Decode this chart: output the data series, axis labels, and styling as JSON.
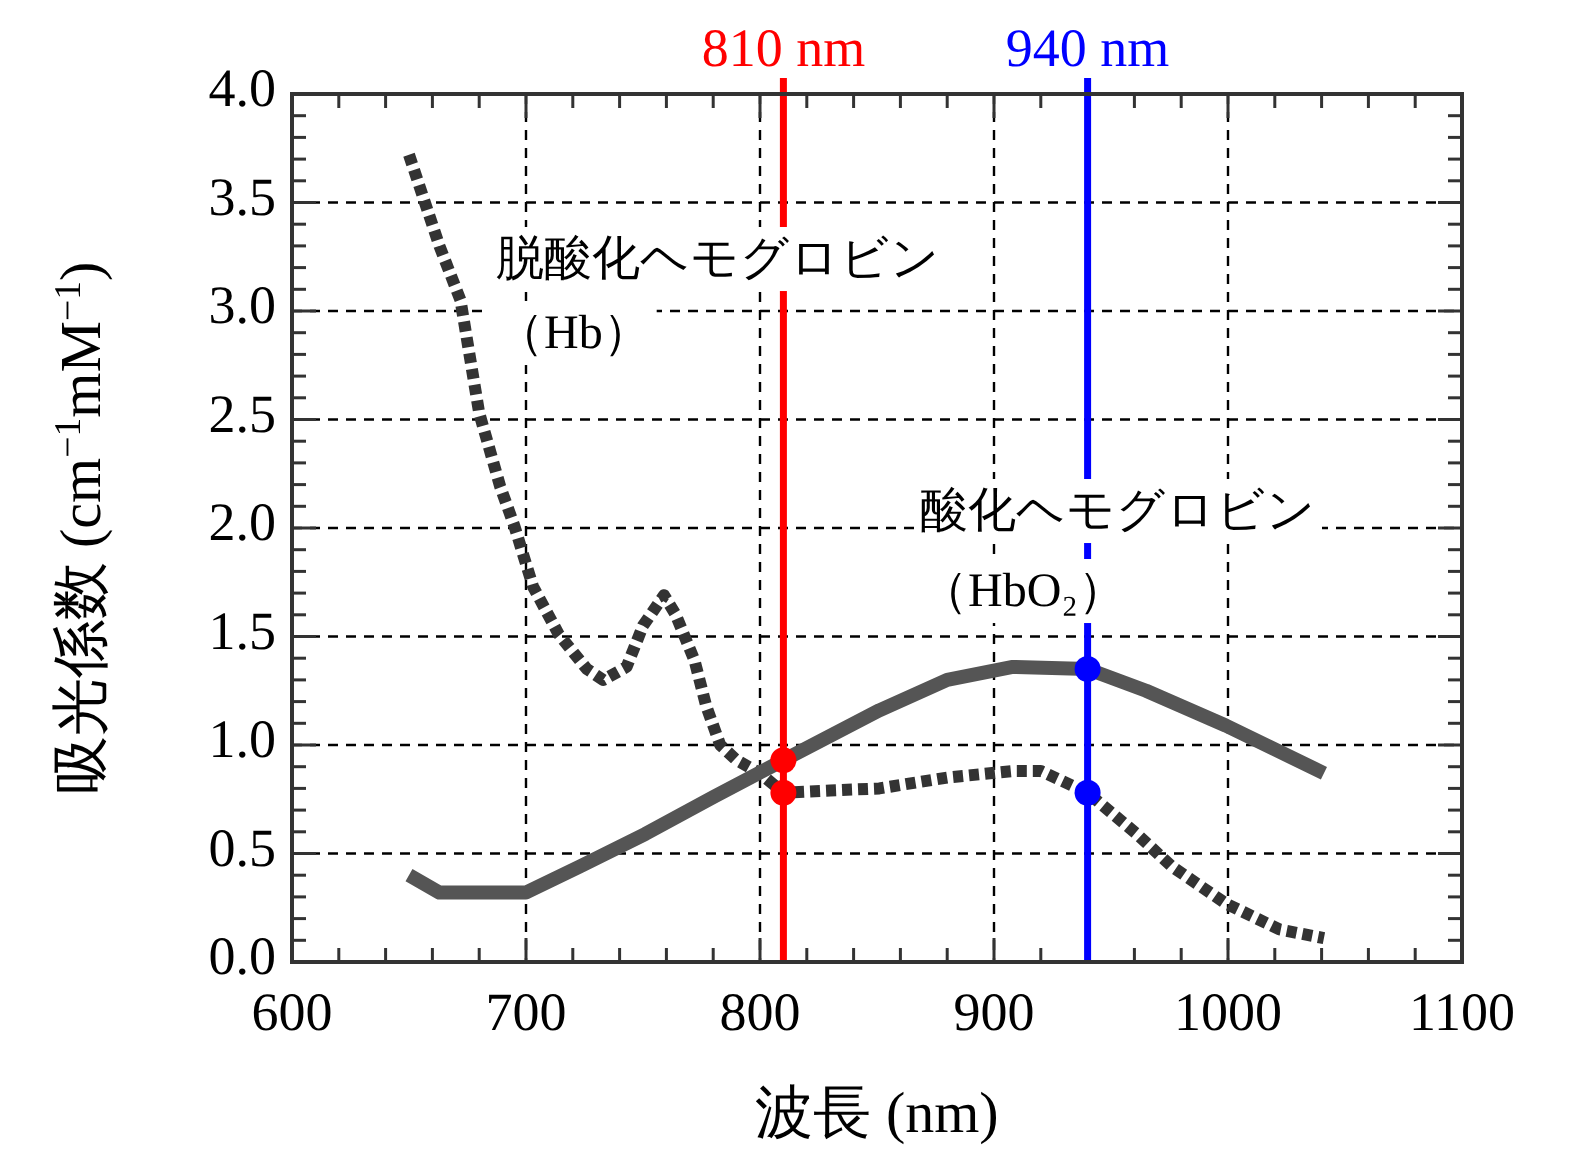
{
  "chart_data": {
    "type": "line",
    "xlabel": "波長 (nm)",
    "ylabel": "吸光係数 (cm$^{−1}$mM$^{−1}$)",
    "xlim": [
      600,
      1100
    ],
    "xticks": [
      600,
      700,
      800,
      900,
      1000,
      1100
    ],
    "ylim": [
      0,
      4
    ],
    "yticks": [
      {
        "value": 0,
        "label": "0.0"
      },
      {
        "value": 0.5,
        "label": "0.5"
      },
      {
        "value": 1,
        "label": "1.0"
      },
      {
        "value": 1.5,
        "label": "1.5"
      },
      {
        "value": 2,
        "label": "2.0"
      },
      {
        "value": 2.5,
        "label": "2.5"
      },
      {
        "value": 3,
        "label": "3.0"
      },
      {
        "value": 3.5,
        "label": "3.5"
      },
      {
        "value": 4,
        "label": "4.0"
      }
    ],
    "grid": true,
    "series": [
      {
        "color": "#333333",
        "line_style": "dotted",
        "x": [
          650,
          663,
          672,
          680,
          689,
          695,
          703,
          714,
          726,
          733,
          743,
          750,
          759,
          764,
          772,
          777,
          783,
          790,
          800,
          810,
          830,
          851,
          880,
          908,
          920,
          940,
          961,
          976,
          999,
          1022,
          1041
        ],
        "values": [
          3.72,
          3.3,
          3.05,
          2.53,
          2.19,
          2.01,
          1.73,
          1.51,
          1.35,
          1.3,
          1.36,
          1.55,
          1.69,
          1.6,
          1.39,
          1.18,
          1.0,
          0.93,
          0.87,
          0.78,
          0.79,
          0.8,
          0.85,
          0.88,
          0.88,
          0.78,
          0.59,
          0.44,
          0.27,
          0.15,
          0.11
        ]
      },
      {
        "color": "#555555",
        "line_style": "solid",
        "x": [
          650,
          663,
          700,
          723,
          751,
          780,
          810,
          851,
          880,
          908,
          940,
          965,
          999,
          1041
        ],
        "values": [
          0.4,
          0.32,
          0.32,
          0.44,
          0.59,
          0.76,
          0.93,
          1.16,
          1.3,
          1.36,
          1.35,
          1.25,
          1.09,
          0.87
        ]
      },
      {
        "type": "scatter",
        "color": "#ff0000",
        "x": [
          810,
          810
        ],
        "values": [
          0.93,
          0.78
        ]
      },
      {
        "type": "scatter",
        "color": "#0000ff",
        "x": [
          940,
          940
        ],
        "values": [
          1.35,
          0.78
        ]
      }
    ],
    "ref_lines": [
      {
        "axis": "x",
        "value": 810,
        "label": "810 nm",
        "color": "#ff0000"
      },
      {
        "axis": "x",
        "value": 940,
        "label": "940 nm",
        "color": "#0000ff"
      }
    ],
    "annotations": [
      "脱酸化ヘモグロビン",
      "（Hb）",
      "酸化ヘモグロビン",
      "（HbO₂）"
    ]
  }
}
